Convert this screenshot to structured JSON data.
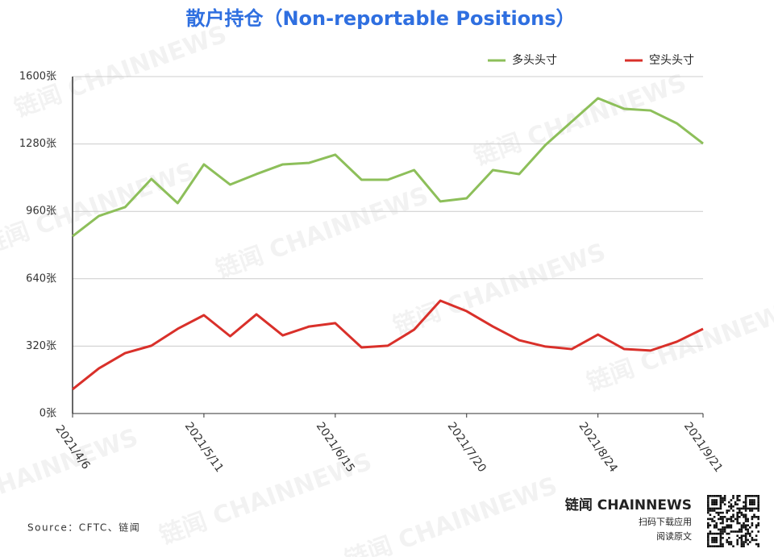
{
  "chart_data": {
    "type": "line",
    "title": "散户持仓（Non-reportable Positions）",
    "categories": [
      "2021/4/6",
      null,
      null,
      null,
      null,
      "2021/5/11",
      null,
      null,
      null,
      null,
      "2021/6/15",
      null,
      null,
      null,
      null,
      "2021/7/20",
      null,
      null,
      null,
      null,
      "2021/8/24",
      null,
      null,
      null,
      "2021/9/21"
    ],
    "series": [
      {
        "name": "多头头寸",
        "color": "#8dbf5a",
        "values": [
          842,
          938,
          980,
          1114,
          999,
          1183,
          1087,
          1137,
          1183,
          1190,
          1229,
          1110,
          1110,
          1156,
          1007,
          1022,
          1156,
          1137,
          1275,
          1386,
          1497,
          1447,
          1439,
          1378,
          1282
        ]
      },
      {
        "name": "空头头寸",
        "color": "#d9302a",
        "values": [
          115,
          214,
          287,
          322,
          402,
          467,
          367,
          471,
          371,
          413,
          429,
          314,
          322,
          398,
          536,
          486,
          413,
          348,
          318,
          306,
          375,
          306,
          299,
          341,
          402
        ]
      }
    ],
    "ylim": [
      0,
      1600
    ],
    "yticks": [
      {
        "value": 0,
        "label": "0张"
      },
      {
        "value": 320,
        "label": "320张"
      },
      {
        "value": 640,
        "label": "640张"
      },
      {
        "value": 960,
        "label": "960张"
      },
      {
        "value": 1280,
        "label": "1280张"
      },
      {
        "value": 1600,
        "label": "1600张"
      }
    ],
    "grid": true,
    "legend": "top-right",
    "source": "Source：CFTC、链闻",
    "watermark": "链闻 CHAINNEWS",
    "logo": "链闻 CHAINNEWS",
    "download": "扫码下载应用",
    "read": "阅读原文"
  }
}
